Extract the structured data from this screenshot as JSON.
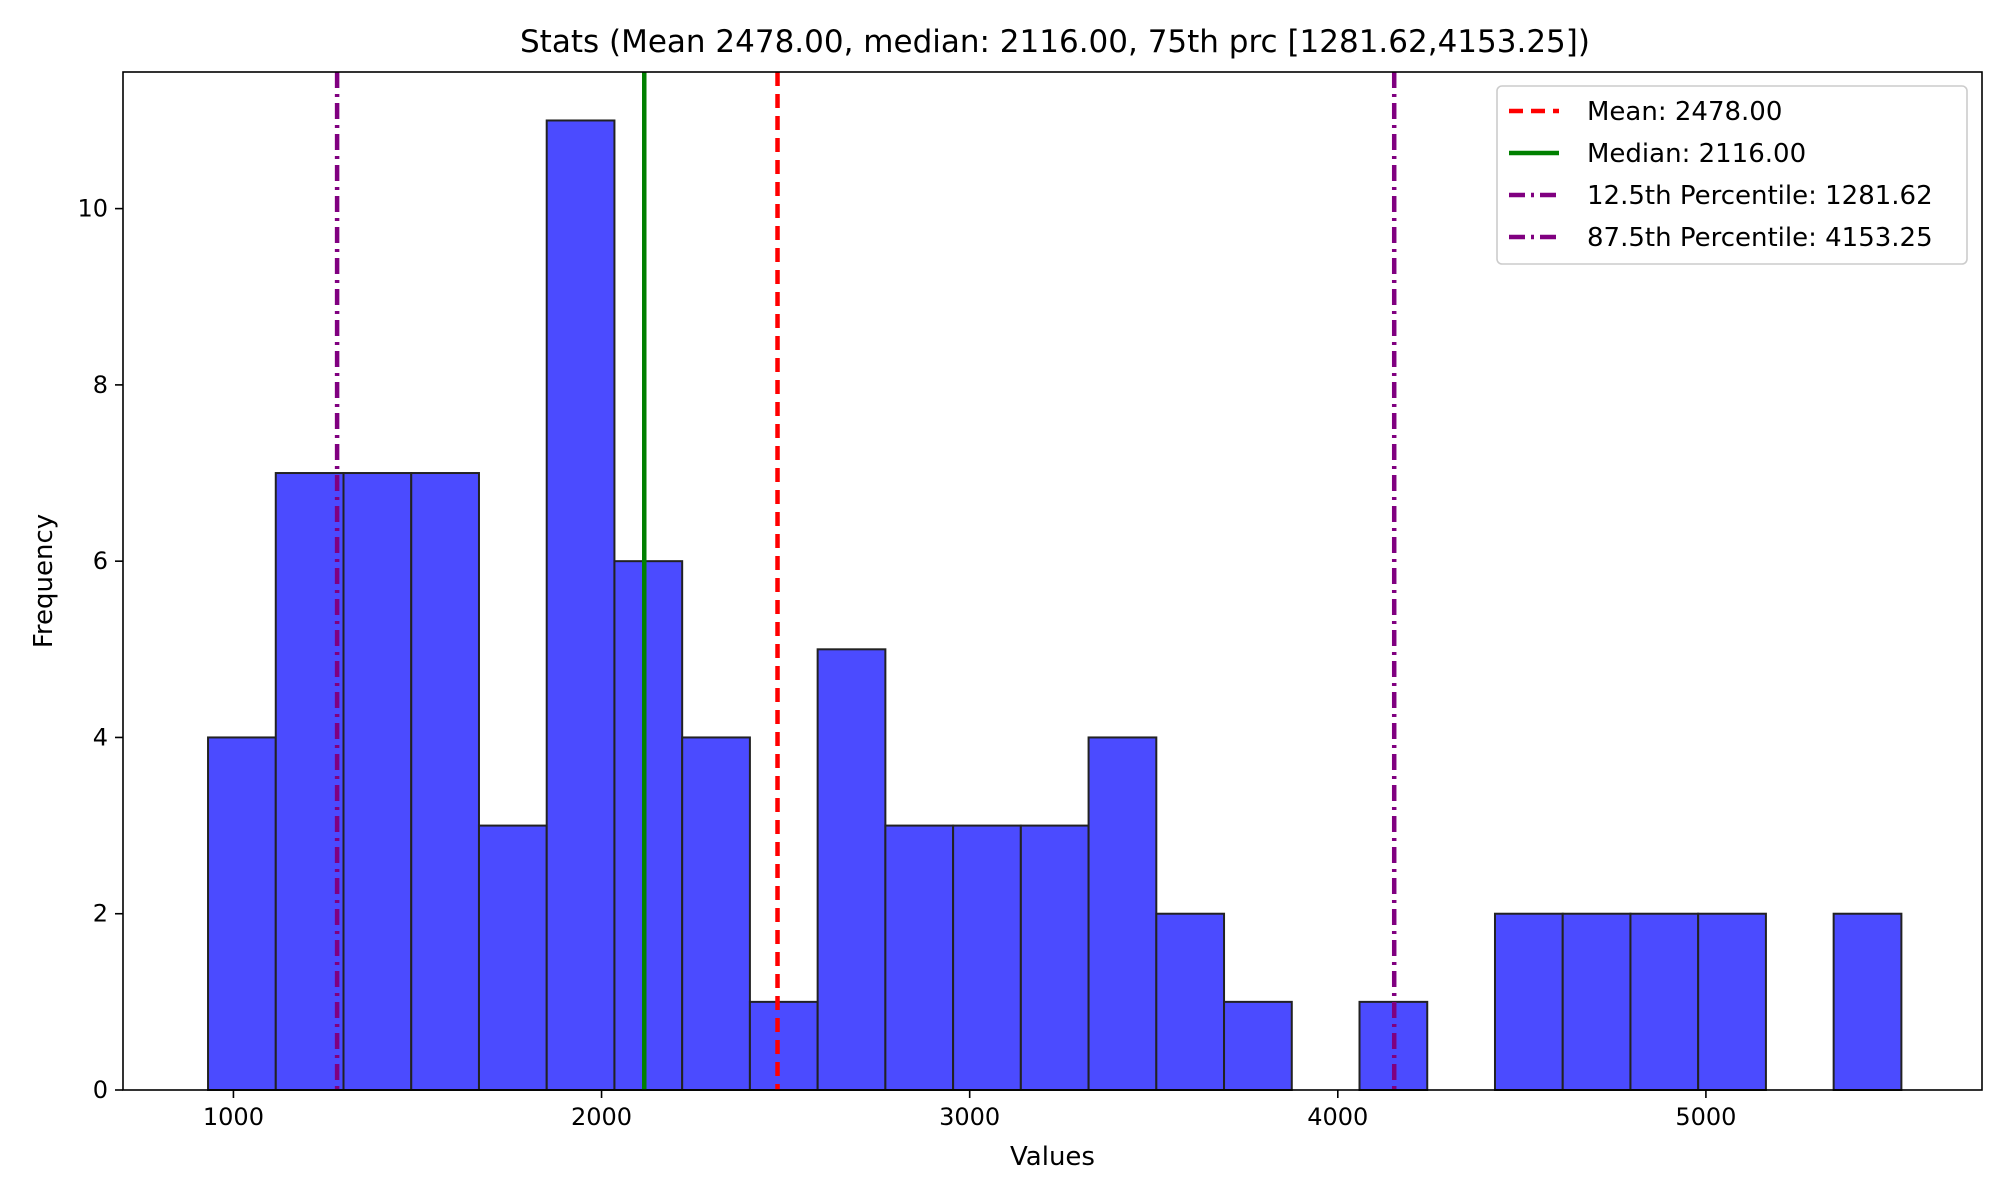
{
  "chart_data": {
    "type": "bar",
    "title": "Stats (Mean 2478.00, median: 2116.00, 75th prc [1281.62,4153.25])",
    "xlabel": "Values",
    "ylabel": "Frequency",
    "xlim": [
      700,
      5750
    ],
    "ylim": [
      0,
      11.55
    ],
    "x_ticks": [
      1000,
      2000,
      3000,
      4000,
      5000
    ],
    "y_ticks": [
      0,
      2,
      4,
      6,
      8,
      10
    ],
    "bin_start": 931,
    "bin_width": 184,
    "counts": [
      4,
      7,
      7,
      7,
      3,
      11,
      6,
      4,
      1,
      5,
      3,
      3,
      3,
      4,
      2,
      1,
      0,
      1,
      0,
      2,
      2,
      2,
      2,
      0,
      2
    ],
    "bar_color": "#4B4BFF",
    "bar_edge_color": "#222222",
    "reference_lines": [
      {
        "label": "Mean: 2478.00",
        "value": 2478.0,
        "color": "#FF0000",
        "style": "dashed"
      },
      {
        "label": "Median: 2116.00",
        "value": 2116.0,
        "color": "#008000",
        "style": "solid"
      },
      {
        "label": "12.5th Percentile: 1281.62",
        "value": 1281.62,
        "color": "#800080",
        "style": "dashdot"
      },
      {
        "label": "87.5th Percentile: 4153.25",
        "value": 4153.25,
        "color": "#800080",
        "style": "dashdot"
      }
    ],
    "legend_position": "top-right",
    "grid": false
  }
}
